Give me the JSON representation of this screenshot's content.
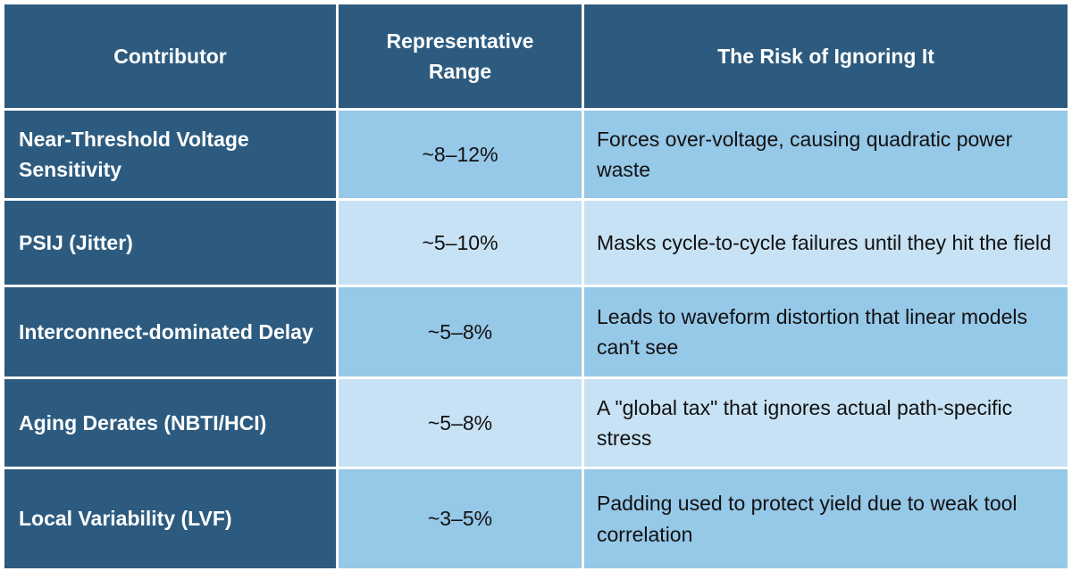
{
  "table": {
    "header": [
      "Contributor",
      "Representative Range",
      "The Risk of Ignoring It"
    ],
    "rows": [
      [
        "Near-Threshold Voltage Sensitivity",
        "~8–12%",
        "Forces over-voltage, causing quadratic power waste"
      ],
      [
        "PSIJ (Jitter)",
        "~5–10%",
        "Masks cycle-to-cycle failures until they hit the field"
      ],
      [
        "Interconnect-dominated Delay",
        "~5–8%",
        "Leads to waveform distortion that linear models can't see"
      ],
      [
        "Aging Derates (NBTI/HCI)",
        "~5–8%",
        "A \"global tax\" that ignores actual path-specific stress"
      ],
      [
        "Local Variability (LVF)",
        "~3–5%",
        "Padding used to protect yield due to weak tool correlation"
      ]
    ]
  }
}
